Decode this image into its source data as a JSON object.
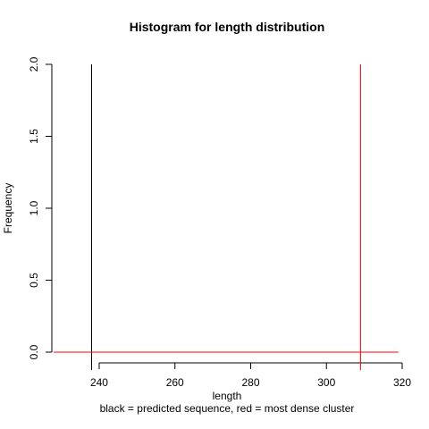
{
  "chart_data": {
    "type": "line",
    "title": "Histogram for length distribution",
    "xlabel": "length",
    "ylabel": "Frequency",
    "subtitle": "black = predicted sequence, red = most dense cluster",
    "xlim": [
      227.5,
      320
    ],
    "ylim": [
      0,
      2
    ],
    "x_ticks": [
      240,
      260,
      280,
      300,
      320
    ],
    "x_tick_labels": [
      "240",
      "260",
      "280",
      "300",
      "320"
    ],
    "y_ticks": [
      0,
      0.5,
      1,
      1.5,
      2
    ],
    "y_tick_labels": [
      "0.0",
      "0.5",
      "1.0",
      "1.5",
      "2.0"
    ],
    "grid": false,
    "series": [
      {
        "color": "#000000",
        "vlines": [
          {
            "x": 238,
            "y": 2.0
          }
        ]
      },
      {
        "color": "#ff0000",
        "baseline": {
          "x": [
            228,
            319
          ],
          "y": 0
        },
        "vlines": [
          {
            "x": 309,
            "y": 2.0
          }
        ]
      }
    ]
  }
}
